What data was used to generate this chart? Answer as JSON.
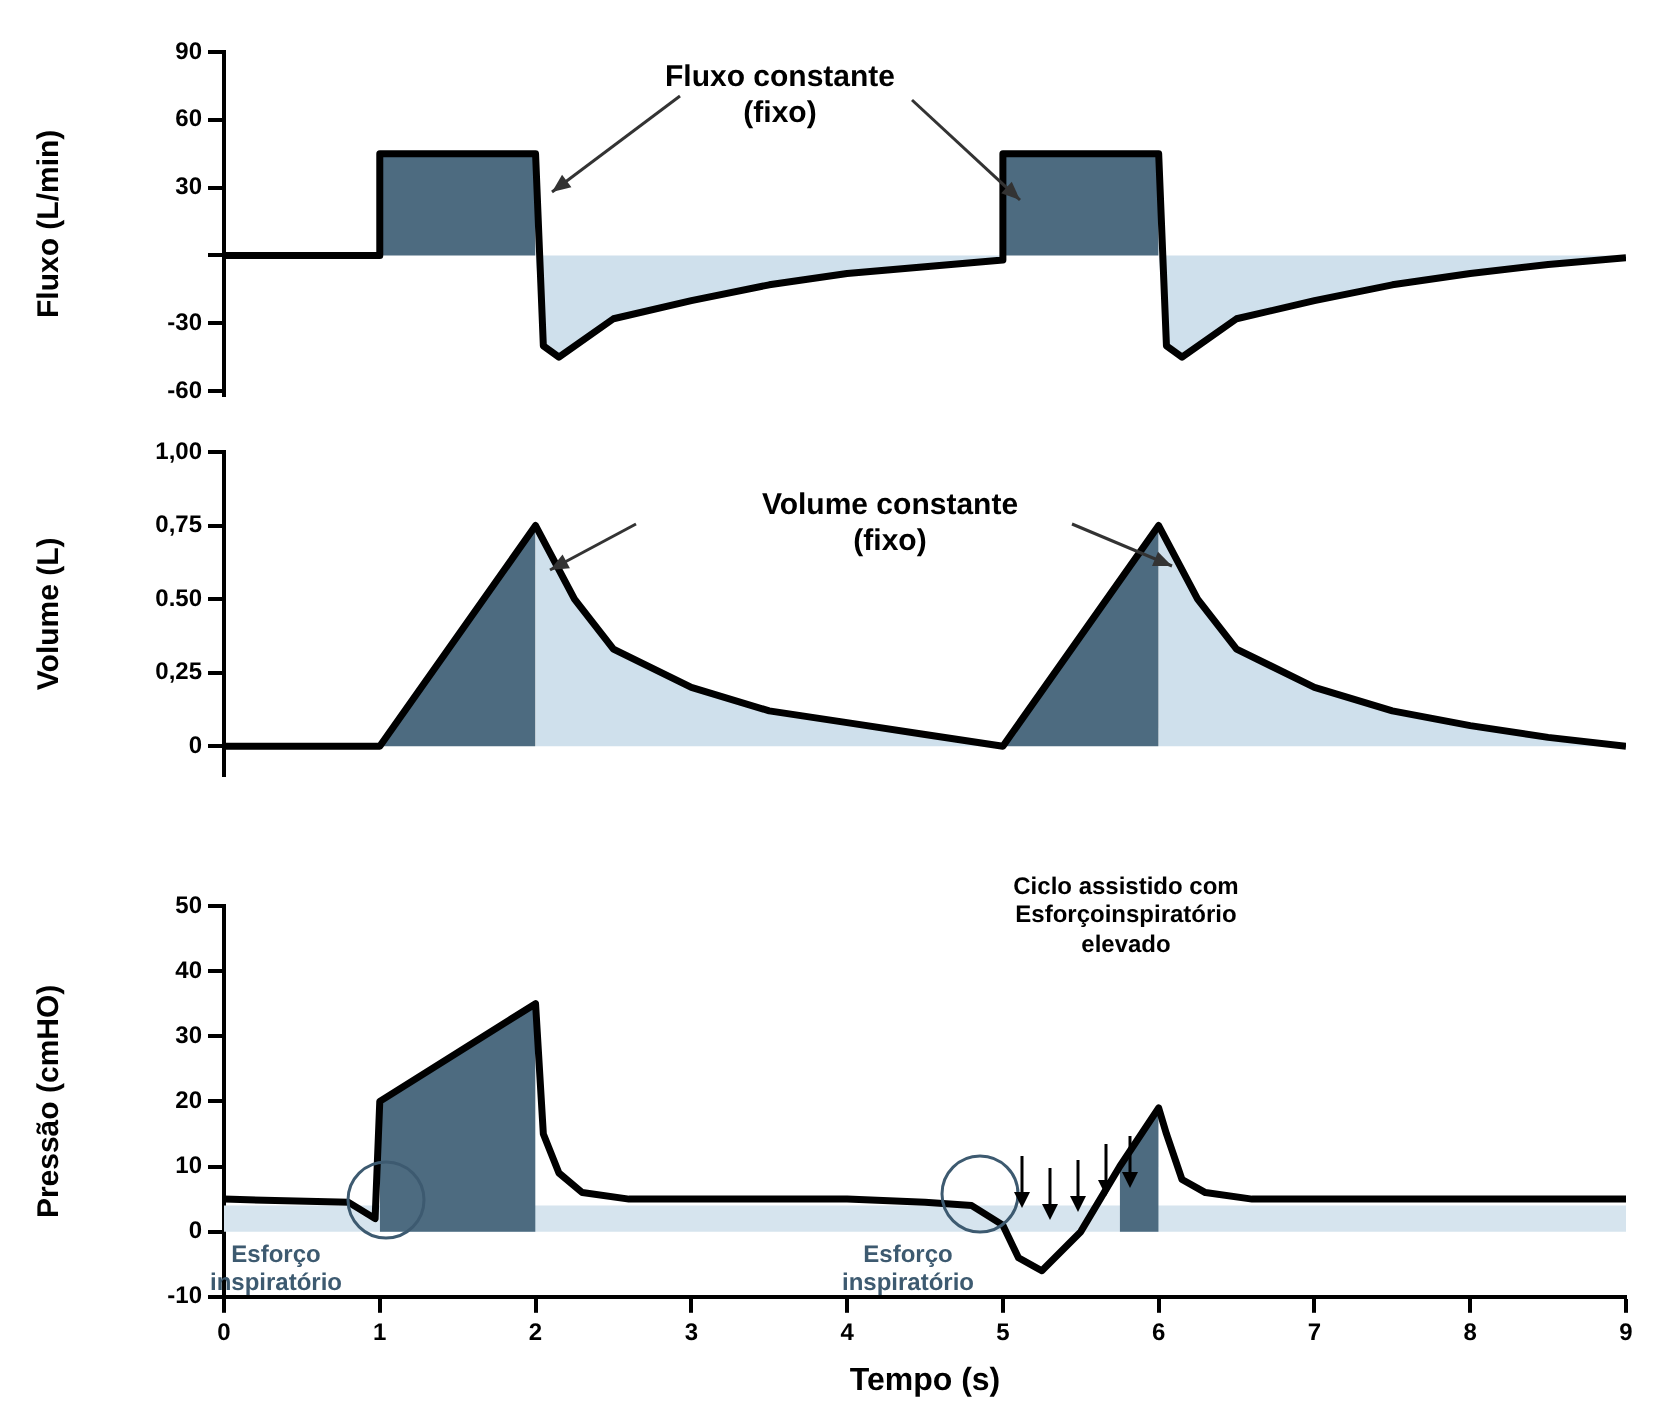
{
  "chart_data": [
    {
      "type": "line",
      "ylabel": "Fluxo (L/min)",
      "xlim": [
        0,
        9
      ],
      "ylim": [
        -62,
        90
      ],
      "yticks": [
        90,
        60,
        30,
        {
          "value": 0,
          "label": null
        },
        -30,
        -60
      ],
      "tick_labels": "y",
      "grid": false,
      "legend": false,
      "annotations": [
        "Fluxo constante\n(fixo)"
      ],
      "series": [
        {
          "type": "area",
          "color": "#4d6b80",
          "x": [
            1,
            2
          ],
          "values": [
            45,
            45
          ]
        },
        {
          "type": "area",
          "color": "#4d6b80",
          "x": [
            5,
            6
          ],
          "values": [
            45,
            45
          ]
        },
        {
          "type": "area",
          "color": "#cfe0ec",
          "x": [
            2,
            2.05,
            2.15,
            2.5,
            3,
            3.5,
            4,
            4.5,
            5
          ],
          "values": [
            0,
            -40,
            -45,
            -28,
            -20,
            -13,
            -8,
            -5,
            -2
          ]
        },
        {
          "type": "area",
          "color": "#cfe0ec",
          "x": [
            6,
            6.05,
            6.15,
            6.5,
            7,
            7.5,
            8,
            8.5,
            9
          ],
          "values": [
            0,
            -40,
            -45,
            -28,
            -20,
            -13,
            -8,
            -4,
            -1
          ]
        },
        {
          "type": "line",
          "color": "#000000",
          "x": [
            0,
            1,
            1,
            2,
            2.05,
            2.15,
            2.5,
            3,
            3.5,
            4,
            4.5,
            5,
            5,
            6,
            6.05,
            6.15,
            6.5,
            7,
            7.5,
            8,
            8.5,
            9
          ],
          "values": [
            0,
            0,
            45,
            45,
            -40,
            -45,
            -28,
            -20,
            -13,
            -8,
            -5,
            -2,
            45,
            45,
            -40,
            -45,
            -28,
            -20,
            -13,
            -8,
            -4,
            -1
          ]
        }
      ]
    },
    {
      "type": "line",
      "ylabel": "Volume (L)",
      "xlim": [
        0,
        9
      ],
      "ylim": [
        -0.1,
        1
      ],
      "yticks": [
        {
          "value": 1,
          "label": "1,00"
        },
        {
          "value": 0.75,
          "label": "0,75"
        },
        {
          "value": 0.5,
          "label": "0.50"
        },
        {
          "value": 0.25,
          "label": "0,25"
        },
        0
      ],
      "tick_labels": "y",
      "grid": false,
      "legend": false,
      "annotations": [
        "Volume constante\n(fixo)"
      ],
      "series": [
        {
          "type": "area",
          "color": "#4d6b80",
          "x": [
            1,
            2
          ],
          "values": [
            0,
            0.75
          ]
        },
        {
          "type": "area",
          "color": "#4d6b80",
          "x": [
            5,
            6
          ],
          "values": [
            0,
            0.75
          ]
        },
        {
          "type": "area",
          "color": "#cfe0ec",
          "x": [
            2,
            2.25,
            2.5,
            3,
            3.5,
            4,
            4.5,
            5
          ],
          "values": [
            0.75,
            0.5,
            0.33,
            0.2,
            0.12,
            0.08,
            0.04,
            0
          ]
        },
        {
          "type": "area",
          "color": "#cfe0ec",
          "x": [
            6,
            6.25,
            6.5,
            7,
            7.5,
            8,
            8.5,
            9
          ],
          "values": [
            0.75,
            0.5,
            0.33,
            0.2,
            0.12,
            0.07,
            0.03,
            0
          ]
        },
        {
          "type": "line",
          "color": "#000000",
          "x": [
            0,
            1,
            2,
            2.25,
            2.5,
            3,
            3.5,
            4,
            4.5,
            5,
            6,
            6.25,
            6.5,
            7,
            7.5,
            8,
            8.5,
            9
          ],
          "values": [
            0,
            0,
            0.75,
            0.5,
            0.33,
            0.2,
            0.12,
            0.08,
            0.04,
            0,
            0.75,
            0.5,
            0.33,
            0.2,
            0.12,
            0.07,
            0.03,
            0
          ]
        }
      ]
    },
    {
      "type": "line",
      "ylabel": "Pressão (cmHO)",
      "xlabel": "Tempo (s)",
      "xlim": [
        0,
        9
      ],
      "ylim": [
        -10,
        50
      ],
      "xticks": [
        0,
        1,
        2,
        3,
        4,
        5,
        6,
        7,
        8,
        9
      ],
      "yticks": [
        50,
        40,
        30,
        20,
        10,
        0,
        -10
      ],
      "grid": false,
      "legend": false,
      "annotations": [
        "Ciclo assistido com\nEsforçoinspiratório\nelevado",
        "Esforço\ninspiratório",
        "Esforço\ninspiratório"
      ],
      "bands": [
        {
          "axis": "y",
          "from": 0,
          "to": 4,
          "color": "#d6e4ee"
        }
      ],
      "series": [
        {
          "type": "area",
          "color": "#4d6b80",
          "x": [
            1,
            2
          ],
          "values": [
            20,
            35
          ]
        },
        {
          "type": "area",
          "color": "#4d6b80",
          "x": [
            5.75,
            6
          ],
          "values": [
            10,
            19
          ]
        },
        {
          "type": "line",
          "color": "#000000",
          "x": [
            0,
            0.8,
            0.97,
            1,
            2,
            2.05,
            2.15,
            2.3,
            2.6,
            3,
            4,
            4.5,
            4.8,
            5,
            5.1,
            5.25,
            5.5,
            5.75,
            6,
            6.05,
            6.15,
            6.3,
            6.6,
            9
          ],
          "values": [
            5,
            4.5,
            2,
            20,
            35,
            15,
            9,
            6,
            5,
            5,
            5,
            4.5,
            4,
            1,
            -4,
            -6,
            0,
            10,
            19,
            15,
            8,
            6,
            5,
            5
          ]
        }
      ]
    }
  ]
}
